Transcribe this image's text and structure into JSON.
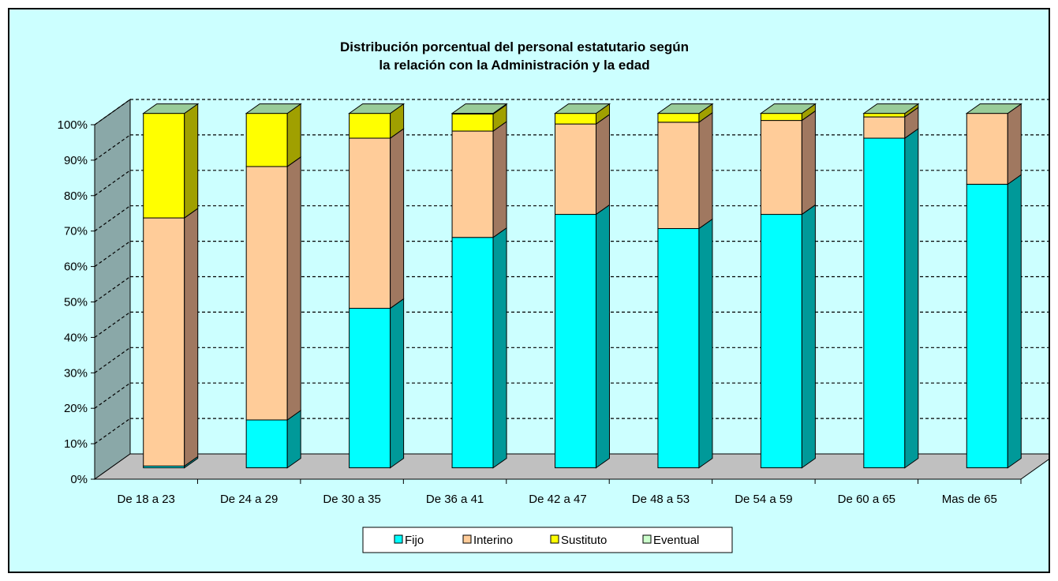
{
  "chart_data": {
    "type": "bar",
    "stacked": true,
    "percent": true,
    "three_d": true,
    "title": [
      "Distribución porcentual del personal estatutario según",
      "la relación con la Administración y la edad"
    ],
    "categories": [
      "De 18 a 23",
      "De 24 a 29",
      "De 30 a 35",
      "De 36 a 41",
      "De 42 a 47",
      "De 48 a 53",
      "De 54 a 59",
      "De 60 a 65",
      "Mas de 65"
    ],
    "series": [
      {
        "name": "Fijo",
        "color": "#00ffff",
        "side": "#009999",
        "top": "#66ffff",
        "values": [
          0.5,
          13.5,
          45,
          65,
          71.5,
          67.5,
          71.5,
          93,
          80
        ]
      },
      {
        "name": "Interino",
        "color": "#ffcc99",
        "side": "#a07860",
        "top": "#ffe0c0",
        "values": [
          70,
          71.5,
          48,
          30,
          25.5,
          30,
          26.5,
          6,
          20
        ]
      },
      {
        "name": "Sustituto",
        "color": "#ffff00",
        "side": "#a0a000",
        "top": "#ffff99",
        "values": [
          29.5,
          15,
          7,
          4.8,
          3,
          2.5,
          2,
          1,
          0
        ]
      },
      {
        "name": "Eventual",
        "color": "#ccffcc",
        "side": "#70a070",
        "top": "#99cc99",
        "values": [
          0,
          0,
          0,
          0.2,
          0,
          0,
          0,
          0,
          0
        ]
      }
    ],
    "y_ticks": [
      "0%",
      "10%",
      "20%",
      "30%",
      "40%",
      "50%",
      "60%",
      "70%",
      "80%",
      "90%",
      "100%"
    ],
    "ylim": [
      0,
      100
    ],
    "grid": true,
    "legend_position": "bottom",
    "colors": {
      "background": "#ccffff",
      "floor": "#c0c0c0",
      "wall": "#c0c0c0",
      "gridline": "#000000"
    }
  }
}
